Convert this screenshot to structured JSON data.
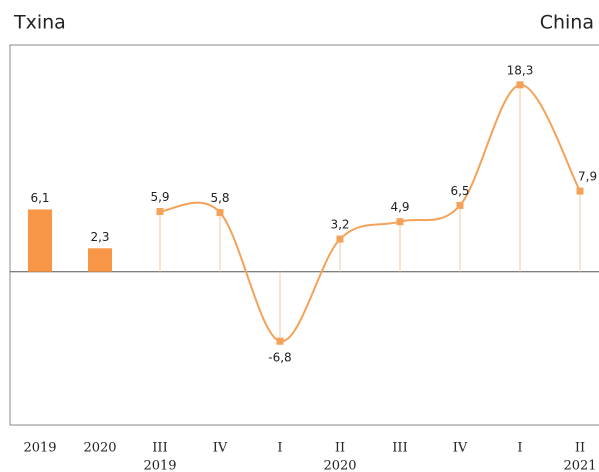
{
  "chart_data": {
    "type": "bar_line",
    "title": "Txina",
    "subtitle": "China",
    "categories": [
      "2019",
      "2020",
      "III",
      "IV",
      "I",
      "II",
      "III",
      "IV",
      "I",
      "II"
    ],
    "year_labels": [
      "2019",
      "2020",
      "2021"
    ],
    "series": [
      {
        "type": "bar",
        "color": "#f79646",
        "values": [
          6.1,
          2.3,
          null,
          null,
          null,
          null,
          null,
          null,
          null,
          null
        ],
        "value_labels": [
          "6,1",
          "2,3",
          null,
          null,
          null,
          null,
          null,
          null,
          null,
          null
        ]
      },
      {
        "type": "line",
        "color": "#f4a259",
        "values": [
          null,
          null,
          5.9,
          5.8,
          -6.8,
          3.2,
          4.9,
          6.5,
          18.3,
          7.9
        ],
        "value_labels": [
          null,
          null,
          "5,9",
          "5,8",
          "-6,8",
          "3,2",
          "4,9",
          "6,5",
          "18,3",
          "7,9"
        ]
      }
    ],
    "ylim": [
      -15,
      22.2
    ]
  }
}
